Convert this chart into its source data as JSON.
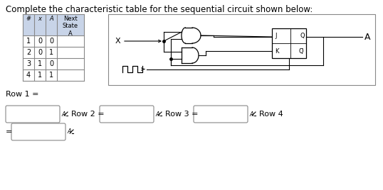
{
  "title": "Complete the characteristic table for the sequential circuit shown below:",
  "table_headers": [
    "#",
    "x",
    "A",
    "Next\nState\nA"
  ],
  "table_rows": [
    [
      "1",
      "0",
      "0",
      ""
    ],
    [
      "2",
      "0",
      "1",
      ""
    ],
    [
      "3",
      "1",
      "0",
      ""
    ],
    [
      "4",
      "1",
      "1",
      ""
    ]
  ],
  "row1_label": "Row 1 =",
  "row2_label": "Row 2 =",
  "row3_label": "Row 3 =",
  "row4_label": "Row 4",
  "equals_label": "=",
  "bg_color": "#ffffff",
  "table_header_bg": "#c8d4e8",
  "table_border_color": "#888888",
  "font_size_title": 8.5,
  "font_size_table": 7,
  "font_size_labels": 8
}
